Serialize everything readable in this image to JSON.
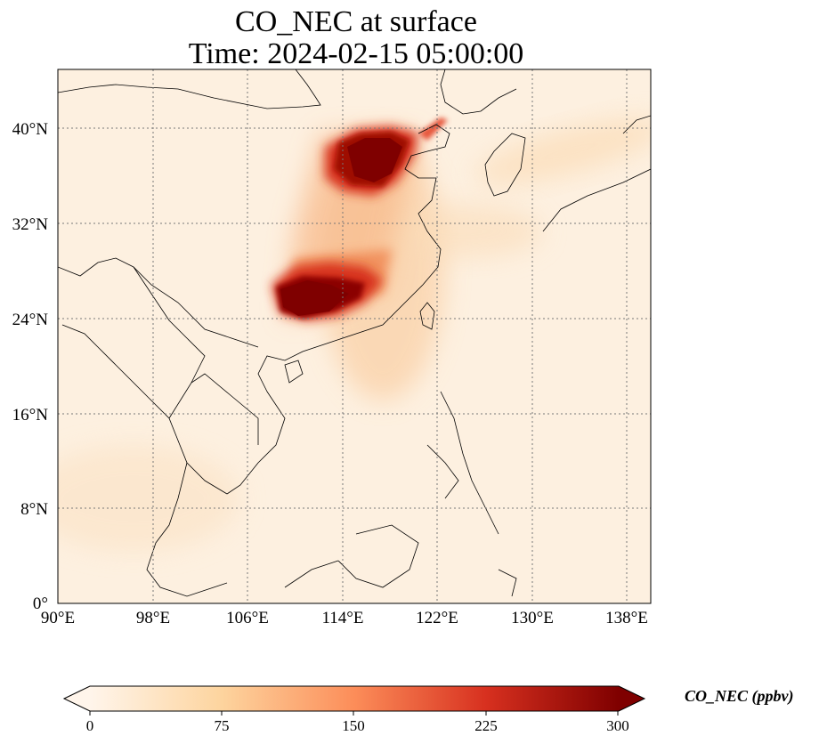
{
  "title": {
    "line1": "CO_NEC at surface",
    "line2": "Time: 2024-02-15 05:00:00"
  },
  "map": {
    "variable": "CO_NEC",
    "level": "surface",
    "extent": {
      "lon_min": 90,
      "lon_max": 140,
      "lat_min": 0,
      "lat_max": 45
    },
    "lat_ticks": [
      "0°",
      "8°N",
      "16°N",
      "24°N",
      "32°N",
      "40°N"
    ],
    "lon_ticks": [
      "90°E",
      "98°E",
      "106°E",
      "114°E",
      "122°E",
      "130°E",
      "138°E"
    ],
    "gridlines": "dotted",
    "colormap": [
      "#fff5eb",
      "#fdd49e",
      "#fc8d59",
      "#d7301f",
      "#7f0000"
    ]
  },
  "colorbar": {
    "label": "CO_NEC (ppbv)",
    "ticks": [
      "0",
      "75",
      "150",
      "225",
      "300"
    ],
    "range": [
      0,
      300
    ],
    "extend": "both"
  }
}
